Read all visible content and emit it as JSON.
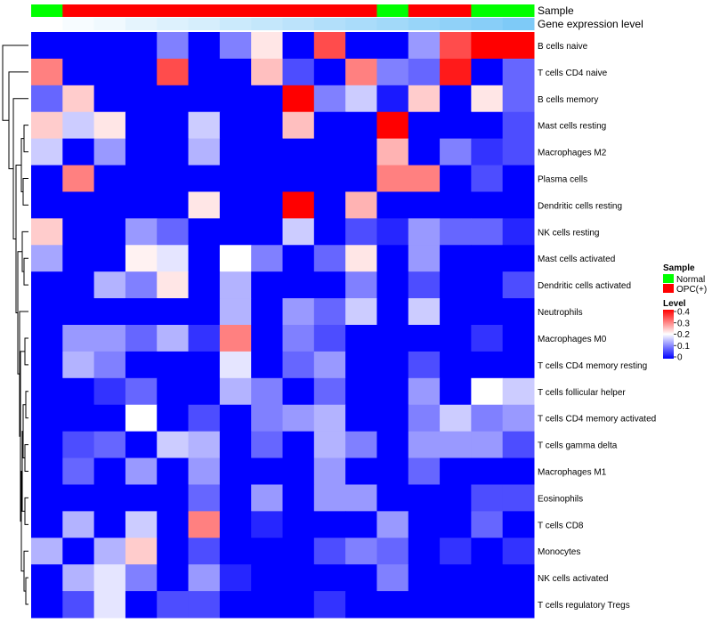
{
  "chart_data": {
    "type": "heatmap",
    "annotation_tracks": [
      "Sample",
      "Gene expression level"
    ],
    "samples": [
      "Normal",
      "OPC(+)",
      "OPC(+)",
      "OPC(+)",
      "OPC(+)",
      "OPC(+)",
      "OPC(+)",
      "OPC(+)",
      "OPC(+)",
      "OPC(+)",
      "OPC(+)",
      "Normal",
      "OPC(+)",
      "OPC(+)",
      "Normal",
      "Normal"
    ],
    "sample_colors": {
      "Normal": "#00ff00",
      "OPC(+)": "#ff0000"
    },
    "expression_level": [
      0.0,
      0.03,
      0.06,
      0.1,
      0.13,
      0.16,
      0.2,
      0.23,
      0.26,
      0.3,
      0.33,
      0.36,
      0.4,
      0.43,
      0.46,
      0.5
    ],
    "expression_colors": {
      "low": "#ffffff",
      "high": "#7ecaf7"
    },
    "rows": [
      "B cells naive",
      "T cells CD4 naive",
      "B cells memory",
      "Mast cells resting",
      "Macrophages M2",
      "Plasma cells",
      "Dendritic cells resting",
      "NK cells resting",
      "Mast cells activated",
      "Dendritic cells activated",
      "Neutrophils",
      "Macrophages M0",
      "T cells CD4 memory resting",
      "T cells follicular helper",
      "T cells CD4 memory activated",
      "T cells gamma delta",
      "Macrophages M1",
      "Eosinophils",
      "T cells CD8",
      "Monocytes",
      "NK cells activated",
      "T cells regulatory  Tregs"
    ],
    "values": [
      [
        0,
        0,
        0,
        0,
        0.1,
        0,
        0.1,
        0.22,
        0,
        0.34,
        0,
        0,
        0.12,
        0.34,
        0.4,
        0.4
      ],
      [
        0.3,
        0,
        0,
        0,
        0.34,
        0,
        0,
        0.25,
        0.06,
        0,
        0.3,
        0.1,
        0.08,
        0.38,
        0,
        0.08
      ],
      [
        0.08,
        0.24,
        0,
        0,
        0,
        0,
        0,
        0,
        0.4,
        0.1,
        0.16,
        0.02,
        0.24,
        0,
        0.22,
        0.08
      ],
      [
        0.24,
        0.16,
        0.22,
        0,
        0,
        0.16,
        0,
        0,
        0.25,
        0,
        0,
        0.4,
        0,
        0,
        0,
        0.06
      ],
      [
        0.16,
        0,
        0.12,
        0,
        0,
        0.14,
        0,
        0,
        0,
        0,
        0,
        0.26,
        0,
        0.1,
        0.04,
        0.06
      ],
      [
        0,
        0.3,
        0,
        0,
        0,
        0,
        0,
        0,
        0,
        0,
        0,
        0.3,
        0.3,
        0,
        0.06,
        0
      ],
      [
        0,
        0,
        0,
        0,
        0,
        0.22,
        0,
        0,
        0.4,
        0,
        0.26,
        0,
        0,
        0,
        0,
        0
      ],
      [
        0.24,
        0,
        0,
        0.12,
        0.08,
        0,
        0,
        0,
        0.16,
        0,
        0.06,
        0.03,
        0.12,
        0.08,
        0.08,
        0.03
      ],
      [
        0.13,
        0,
        0,
        0.21,
        0.18,
        0,
        0.2,
        0.1,
        0,
        0.08,
        0.22,
        0,
        0.12,
        0,
        0,
        0
      ],
      [
        0,
        0,
        0.14,
        0.1,
        0.22,
        0,
        0.14,
        0,
        0,
        0,
        0.1,
        0,
        0.06,
        0,
        0,
        0.06
      ],
      [
        0,
        0,
        0,
        0,
        0,
        0,
        0.14,
        0,
        0.12,
        0.08,
        0.16,
        0,
        0.16,
        0,
        0,
        0
      ],
      [
        0,
        0.12,
        0.12,
        0.08,
        0.14,
        0.04,
        0.3,
        0,
        0.1,
        0.06,
        0,
        0,
        0,
        0,
        0.04,
        0
      ],
      [
        0,
        0.14,
        0.1,
        0,
        0,
        0,
        0.18,
        0,
        0.08,
        0.12,
        0,
        0,
        0.06,
        0,
        0,
        0
      ],
      [
        0,
        0,
        0.04,
        0.08,
        0,
        0,
        0.14,
        0.1,
        0,
        0.08,
        0,
        0,
        0.12,
        0,
        0.2,
        0.16
      ],
      [
        0,
        0,
        0,
        0.2,
        0,
        0.06,
        0,
        0.1,
        0.12,
        0.14,
        0,
        0,
        0.1,
        0.16,
        0.1,
        0.12
      ],
      [
        0,
        0.06,
        0.08,
        0,
        0.16,
        0.14,
        0,
        0.08,
        0,
        0.14,
        0.1,
        0,
        0.12,
        0.12,
        0.12,
        0.06
      ],
      [
        0,
        0.08,
        0,
        0.12,
        0,
        0.12,
        0,
        0,
        0,
        0.12,
        0,
        0,
        0.08,
        0,
        0,
        0
      ],
      [
        0,
        0,
        0,
        0,
        0,
        0.08,
        0,
        0.12,
        0,
        0.12,
        0.12,
        0,
        0,
        0,
        0.06,
        0.06
      ],
      [
        0,
        0.14,
        0,
        0.16,
        0,
        0.3,
        0,
        0.03,
        0,
        0,
        0,
        0.12,
        0,
        0,
        0.08,
        0
      ],
      [
        0.14,
        0,
        0.14,
        0.24,
        0,
        0.06,
        0,
        0,
        0,
        0.06,
        0.1,
        0.08,
        0,
        0.04,
        0,
        0.04
      ],
      [
        0,
        0.14,
        0.18,
        0.1,
        0,
        0.12,
        0.03,
        0,
        0,
        0,
        0,
        0.1,
        0,
        0,
        0,
        0
      ],
      [
        0,
        0.06,
        0.18,
        0,
        0.06,
        0.06,
        0,
        0,
        0,
        0.04,
        0,
        0,
        0,
        0,
        0,
        0
      ]
    ],
    "color_scale": {
      "min": 0,
      "mid": 0.2,
      "max": 0.4,
      "low": "#0000ff",
      "mid_color": "#ffffff",
      "high": "#ff0000"
    },
    "legend": {
      "sample_title": "Sample",
      "sample_items": [
        "Normal",
        "OPC(+)"
      ],
      "level_title": "Level",
      "level_ticks": [
        "0.4",
        "0.3",
        "0.2",
        "0.1",
        "0"
      ],
      "placement": "right"
    },
    "row_dendrogram": true
  }
}
